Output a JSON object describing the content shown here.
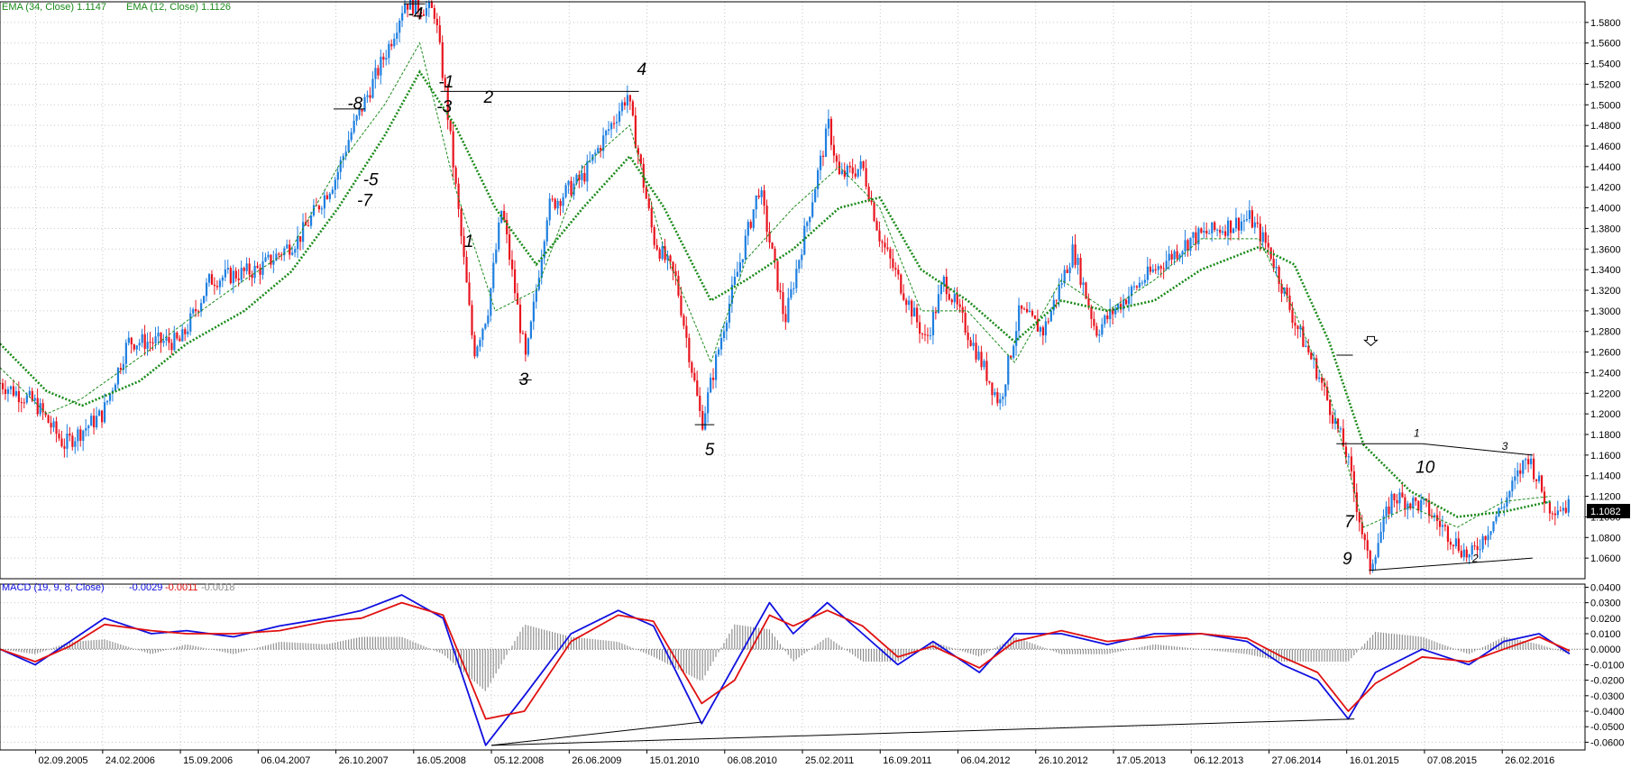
{
  "colors": {
    "bull": "#1e7fe0",
    "bear": "#e8141e",
    "ema_fast": "#1a8a1a",
    "ema_slow": "#1a8a1a",
    "macd": "#1010e0",
    "signal": "#e01010",
    "histogram": "#909090",
    "grid": "#c8c8c8"
  },
  "price_legend": {
    "ema34": "EMA (34, Close) 1.1147",
    "ema12": "EMA (12, Close) 1.1126"
  },
  "macd_legend": {
    "name": "MACD (19, 9, 8, Close)",
    "v1": "-0.0029",
    "v2": "-0.0011",
    "v3": "-0.0018"
  },
  "current_price": "1.1082",
  "x_labels": [
    "02.09.2005",
    "24.02.2006",
    "15.09.2006",
    "06.04.2007",
    "26.10.2007",
    "16.05.2008",
    "05.12.2008",
    "26.06.2009",
    "15.01.2010",
    "06.08.2010",
    "25.02.2011",
    "16.09.2011",
    "06.04.2012",
    "26.10.2012",
    "17.05.2013",
    "06.12.2013",
    "27.06.2014",
    "16.01.2015",
    "07.08.2015",
    "26.02.2016"
  ],
  "y_labels": [
    "1.5800",
    "1.5600",
    "1.5400",
    "1.5200",
    "1.5000",
    "1.4800",
    "1.4600",
    "1.4400",
    "1.4200",
    "1.4000",
    "1.3800",
    "1.3600",
    "1.3400",
    "1.3200",
    "1.3000",
    "1.2800",
    "1.2600",
    "1.2400",
    "1.2200",
    "1.2000",
    "1.1800",
    "1.1600",
    "1.1400",
    "1.1200",
    "1.1000",
    "1.0800",
    "1.0600"
  ],
  "macd_y_labels": [
    "0.0400",
    "0.0300",
    "0.0200",
    "0.0100",
    "0.0000",
    "-0.0100",
    "-0.0200",
    "-0.0300",
    "-0.0400",
    "-0.0500",
    "-0.0600"
  ],
  "wave_labels": [
    {
      "text": "-4",
      "x": "2008-05-01",
      "y": 1.583
    },
    {
      "text": "-8",
      "x": "2007-11-25",
      "y": 1.496
    },
    {
      "text": "-1",
      "x": "2008-07-20",
      "y": 1.517
    },
    {
      "text": "-3",
      "x": "2008-07-15",
      "y": 1.493
    },
    {
      "text": "-5",
      "x": "2008-01-05",
      "y": 1.422
    },
    {
      "text": "-7",
      "x": "2007-12-20",
      "y": 1.402
    },
    {
      "text": "2",
      "x": "2008-11-15",
      "y": 1.502
    },
    {
      "text": "4",
      "x": "2009-12-20",
      "y": 1.529
    },
    {
      "text": "1",
      "x": "2008-09-25",
      "y": 1.362
    },
    {
      "text": "3",
      "x": "2009-02-15",
      "y": 1.228
    },
    {
      "text": "5",
      "x": "2010-06-15",
      "y": 1.16
    },
    {
      "text": "7",
      "x": "2015-01-10",
      "y": 1.09
    },
    {
      "text": "9",
      "x": "2015-01-05",
      "y": 1.054
    },
    {
      "text": "10",
      "x": "2015-07-15",
      "y": 1.143
    }
  ],
  "small_labels": [
    {
      "text": "1",
      "x": "2015-07-10",
      "y": 1.178
    },
    {
      "text": "3",
      "x": "2016-02-25",
      "y": 1.165
    },
    {
      "text": "2",
      "x": "2015-12-10",
      "y": 1.056
    }
  ],
  "chart_data": [
    {
      "type": "candlestick",
      "title": "",
      "series": [
        {
          "name": "EMA (34, Close)",
          "x": [
            "2005-06-01",
            "2005-10-01",
            "2006-01-01",
            "2006-06-01",
            "2006-10-01",
            "2007-03-01",
            "2007-07-01",
            "2007-11-01",
            "2008-03-01",
            "2008-06-01",
            "2008-09-01",
            "2008-12-15",
            "2009-04-01",
            "2009-08-01",
            "2009-12-01",
            "2010-03-01",
            "2010-07-01",
            "2010-10-01",
            "2011-02-01",
            "2011-06-01",
            "2011-09-15",
            "2012-01-01",
            "2012-05-01",
            "2012-09-01",
            "2013-01-01",
            "2013-05-01",
            "2013-09-01",
            "2014-01-01",
            "2014-06-01",
            "2014-09-01",
            "2014-12-01",
            "2015-03-01",
            "2015-07-01",
            "2015-11-01",
            "2016-03-01",
            "2016-07-01"
          ],
          "values": [
            1.268,
            1.222,
            1.208,
            1.232,
            1.268,
            1.3,
            1.338,
            1.4,
            1.47,
            1.532,
            1.48,
            1.4,
            1.345,
            1.4,
            1.45,
            1.4,
            1.31,
            1.33,
            1.36,
            1.4,
            1.41,
            1.34,
            1.31,
            1.27,
            1.31,
            1.3,
            1.31,
            1.34,
            1.362,
            1.345,
            1.27,
            1.17,
            1.125,
            1.1,
            1.105,
            1.115
          ]
        },
        {
          "name": "EMA (12, Close)",
          "x": [
            "2005-06-01",
            "2005-10-01",
            "2006-01-01",
            "2006-06-01",
            "2006-10-01",
            "2007-03-01",
            "2007-07-01",
            "2007-11-01",
            "2008-03-01",
            "2008-06-01",
            "2008-09-01",
            "2008-12-15",
            "2009-04-01",
            "2009-08-01",
            "2009-12-01",
            "2010-03-01",
            "2010-07-01",
            "2010-10-01",
            "2011-02-01",
            "2011-06-01",
            "2011-09-15",
            "2012-01-01",
            "2012-05-01",
            "2012-09-01",
            "2013-01-01",
            "2013-05-01",
            "2013-09-01",
            "2014-01-01",
            "2014-06-01",
            "2014-09-01",
            "2014-12-01",
            "2015-03-01",
            "2015-07-01",
            "2015-11-01",
            "2016-03-01",
            "2016-07-01"
          ],
          "values": [
            1.245,
            1.2,
            1.215,
            1.255,
            1.29,
            1.33,
            1.36,
            1.44,
            1.5,
            1.56,
            1.42,
            1.3,
            1.32,
            1.44,
            1.48,
            1.36,
            1.25,
            1.35,
            1.4,
            1.44,
            1.4,
            1.3,
            1.3,
            1.25,
            1.33,
            1.3,
            1.33,
            1.37,
            1.37,
            1.3,
            1.22,
            1.09,
            1.11,
            1.09,
            1.115,
            1.12
          ]
        }
      ],
      "candles_note": "",
      "price_anchors": {
        "x": [
          "2005-06-01",
          "2005-09-02",
          "2005-11-15",
          "2006-02-24",
          "2006-05-01",
          "2006-09-15",
          "2006-12-01",
          "2007-04-06",
          "2007-07-20",
          "2007-10-26",
          "2007-12-01",
          "2008-03-15",
          "2008-04-22",
          "2008-07-10",
          "2008-08-10",
          "2008-10-20",
          "2008-11-25",
          "2009-01-01",
          "2009-03-05",
          "2009-05-01",
          "2009-08-01",
          "2009-11-25",
          "2010-02-01",
          "2010-04-01",
          "2010-06-07",
          "2010-08-06",
          "2010-11-04",
          "2011-01-10",
          "2011-05-04",
          "2011-06-01",
          "2011-08-01",
          "2011-09-16",
          "2012-01-13",
          "2012-03-01",
          "2012-07-24",
          "2012-09-14",
          "2012-11-15",
          "2013-02-01",
          "2013-04-01",
          "2013-05-17",
          "2013-08-01",
          "2013-12-06",
          "2014-05-08",
          "2014-06-27",
          "2014-09-01",
          "2014-11-01",
          "2015-01-16",
          "2015-03-16",
          "2015-05-15",
          "2015-08-07",
          "2015-12-03",
          "2016-02-26",
          "2016-05-03",
          "2016-06-24",
          "2016-08-20"
        ],
        "y": [
          1.23,
          1.21,
          1.17,
          1.2,
          1.27,
          1.27,
          1.33,
          1.34,
          1.37,
          1.43,
          1.47,
          1.56,
          1.6,
          1.59,
          1.5,
          1.26,
          1.3,
          1.4,
          1.25,
          1.4,
          1.43,
          1.51,
          1.37,
          1.33,
          1.19,
          1.29,
          1.42,
          1.29,
          1.48,
          1.43,
          1.44,
          1.37,
          1.27,
          1.33,
          1.21,
          1.3,
          1.28,
          1.36,
          1.28,
          1.3,
          1.33,
          1.37,
          1.39,
          1.36,
          1.29,
          1.24,
          1.16,
          1.05,
          1.12,
          1.11,
          1.06,
          1.11,
          1.16,
          1.11,
          1.11
        ]
      },
      "key_levels": [
        {
          "y": 1.58,
          "text": "-4"
        },
        {
          "y": 1.513,
          "text": "2 - 4"
        },
        {
          "y": 1.1897,
          "text": "5"
        },
        {
          "y": 1.171,
          "text": "1 - 3"
        }
      ],
      "xlabel": "",
      "ylabel": "",
      "ylim": [
        1.04,
        1.6
      ],
      "xlim": [
        "2005-06-01",
        "2016-09-15"
      ],
      "grid": true,
      "legend": "top-left"
    },
    {
      "type": "line",
      "title": "MACD (19, 9, 8, Close)",
      "x": [
        "2005-06-01",
        "2005-09-01",
        "2005-12-01",
        "2006-03-01",
        "2006-07-01",
        "2006-10-01",
        "2007-02-01",
        "2007-06-01",
        "2007-10-01",
        "2008-01-01",
        "2008-04-15",
        "2008-08-01",
        "2008-11-20",
        "2009-03-01",
        "2009-07-01",
        "2009-11-01",
        "2010-02-01",
        "2010-06-07",
        "2010-09-01",
        "2010-12-01",
        "2011-02-01",
        "2011-05-01",
        "2011-08-01",
        "2011-11-01",
        "2012-02-01",
        "2012-06-01",
        "2012-09-01",
        "2013-01-01",
        "2013-05-01",
        "2013-09-01",
        "2014-01-01",
        "2014-05-01",
        "2014-08-01",
        "2014-11-01",
        "2015-01-20",
        "2015-04-01",
        "2015-08-01",
        "2015-12-01",
        "2016-03-01",
        "2016-06-01",
        "2016-08-20"
      ],
      "series": [
        {
          "name": "MACD",
          "values": [
            0.0,
            -0.01,
            0.005,
            0.02,
            0.01,
            0.012,
            0.008,
            0.015,
            0.02,
            0.025,
            0.035,
            0.02,
            -0.062,
            -0.03,
            0.01,
            0.025,
            0.015,
            -0.048,
            -0.01,
            0.03,
            0.01,
            0.03,
            0.01,
            -0.01,
            0.005,
            -0.015,
            0.01,
            0.01,
            0.003,
            0.01,
            0.01,
            0.005,
            -0.01,
            -0.02,
            -0.045,
            -0.015,
            0.0,
            -0.01,
            0.005,
            0.01,
            -0.003
          ]
        },
        {
          "name": "Signal",
          "values": [
            0.0,
            -0.008,
            0.002,
            0.016,
            0.012,
            0.01,
            0.01,
            0.012,
            0.018,
            0.02,
            0.03,
            0.022,
            -0.045,
            -0.04,
            0.005,
            0.022,
            0.018,
            -0.035,
            -0.02,
            0.022,
            0.015,
            0.025,
            0.015,
            -0.005,
            0.002,
            -0.012,
            0.005,
            0.012,
            0.005,
            0.008,
            0.01,
            0.007,
            -0.005,
            -0.015,
            -0.04,
            -0.022,
            -0.005,
            -0.008,
            0.0,
            0.008,
            -0.001
          ]
        }
      ],
      "ylim": [
        -0.065,
        0.042
      ],
      "grid": true,
      "legend": "top-left"
    }
  ]
}
